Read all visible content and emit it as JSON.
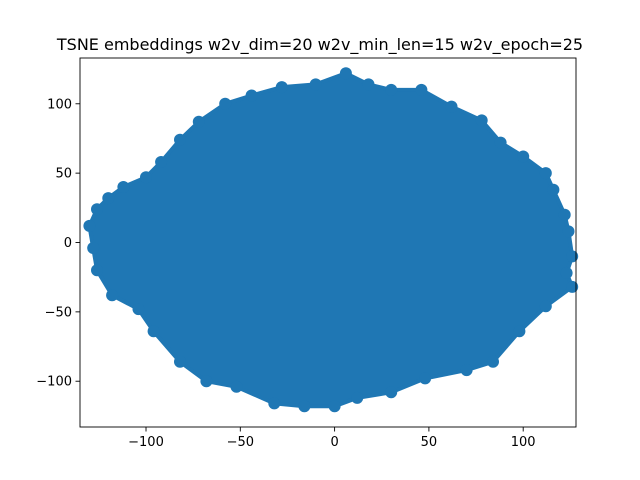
{
  "chart_data": {
    "type": "scatter",
    "title": "TSNE embeddings w2v_dim=20 w2v_min_len=15 w2v_epoch=25",
    "xlabel": "",
    "ylabel": "",
    "xlim": [
      -135,
      128
    ],
    "ylim": [
      -133,
      133
    ],
    "xticks": [
      -100,
      -50,
      0,
      50,
      100
    ],
    "xtick_labels": [
      "−100",
      "−50",
      "0",
      "50",
      "100"
    ],
    "yticks": [
      -100,
      -50,
      0,
      50,
      100
    ],
    "ytick_labels": [
      "−100",
      "−50",
      "0",
      "50",
      "100"
    ],
    "grid": false,
    "point_color": "#1f77b4",
    "series": [
      {
        "point_cloud": {
          "shape": "dense elliptical cluster",
          "x_range": [
            -130,
            125
          ],
          "y_range": [
            -122,
            122
          ],
          "outline": [
            [
              -130,
              12
            ],
            [
              -126,
              24
            ],
            [
              -120,
              32
            ],
            [
              -112,
              40
            ],
            [
              -100,
              47
            ],
            [
              -92,
              58
            ],
            [
              -82,
              74
            ],
            [
              -72,
              87
            ],
            [
              -58,
              100
            ],
            [
              -44,
              106
            ],
            [
              -28,
              112
            ],
            [
              -10,
              114
            ],
            [
              6,
              122
            ],
            [
              18,
              114
            ],
            [
              30,
              110
            ],
            [
              46,
              110
            ],
            [
              62,
              98
            ],
            [
              78,
              88
            ],
            [
              88,
              72
            ],
            [
              100,
              62
            ],
            [
              112,
              50
            ],
            [
              116,
              38
            ],
            [
              122,
              20
            ],
            [
              124,
              8
            ],
            [
              126,
              -10
            ],
            [
              123,
              -22
            ],
            [
              126,
              -32
            ],
            [
              112,
              -46
            ],
            [
              98,
              -64
            ],
            [
              84,
              -86
            ],
            [
              70,
              -92
            ],
            [
              48,
              -98
            ],
            [
              30,
              -108
            ],
            [
              12,
              -112
            ],
            [
              0,
              -118
            ],
            [
              -16,
              -118
            ],
            [
              -32,
              -116
            ],
            [
              -52,
              -104
            ],
            [
              -68,
              -100
            ],
            [
              -82,
              -86
            ],
            [
              -96,
              -64
            ],
            [
              -104,
              -48
            ],
            [
              -118,
              -38
            ],
            [
              -126,
              -20
            ],
            [
              -128,
              -4
            ]
          ]
        }
      }
    ]
  }
}
